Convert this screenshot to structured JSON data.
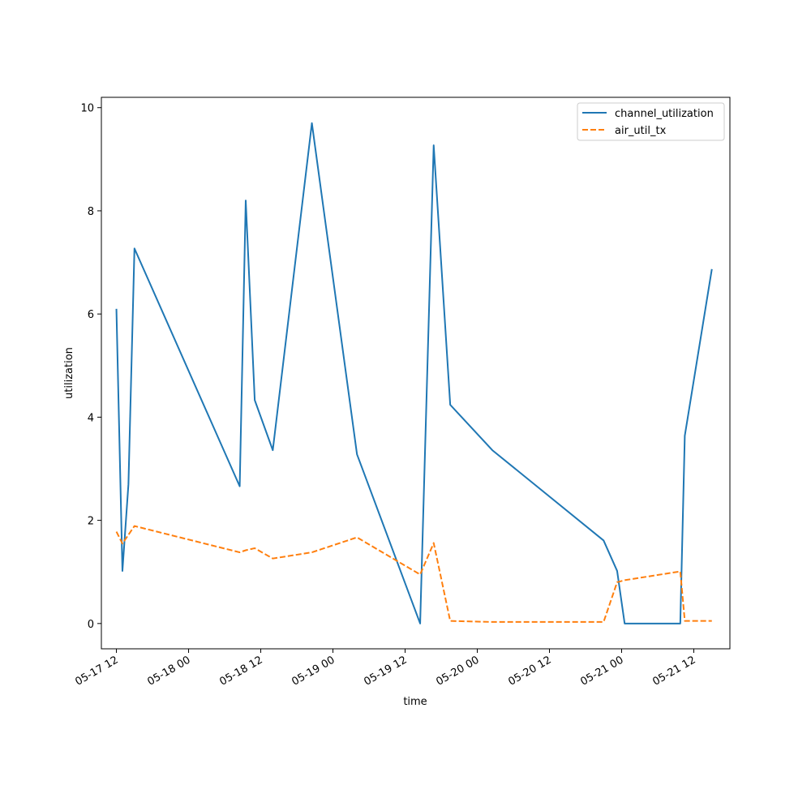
{
  "chart_data": {
    "type": "line",
    "title": "",
    "xlabel": "time",
    "ylabel": "utilization",
    "grid": false,
    "legend_position": "top-right",
    "x_ticks": [
      "05-17 12",
      "05-18 00",
      "05-18 12",
      "05-19 00",
      "05-19 12",
      "05-20 00",
      "05-20 12",
      "05-21 00",
      "05-21 12"
    ],
    "y_ticks": [
      "0",
      "2",
      "4",
      "6",
      "8",
      "10"
    ],
    "xlim": [
      "2024-05-17 09:30",
      "2024-05-21 18:00"
    ],
    "ylim": [
      -0.49,
      10.2
    ],
    "x": [
      "2024-05-17 12:00",
      "2024-05-17 13:00",
      "2024-05-17 14:00",
      "2024-05-17 15:00",
      "2024-05-18 08:30",
      "2024-05-18 09:30",
      "2024-05-18 11:00",
      "2024-05-18 14:00",
      "2024-05-18 20:30",
      "2024-05-19 04:00",
      "2024-05-19 14:30",
      "2024-05-19 16:45",
      "2024-05-19 19:30",
      "2024-05-20 02:30",
      "2024-05-20 21:00",
      "2024-05-20 23:15",
      "2024-05-21 00:30",
      "2024-05-21 09:45",
      "2024-05-21 10:30",
      "2024-05-21 15:00"
    ],
    "series": [
      {
        "name": "channel_utilization",
        "color": "#1f77b4",
        "style": "solid",
        "values": [
          6.1,
          1.02,
          2.7,
          7.27,
          2.66,
          8.2,
          4.33,
          3.36,
          9.7,
          3.28,
          0.0,
          9.27,
          4.24,
          3.36,
          1.61,
          1.02,
          0.0,
          0.0,
          3.64,
          6.87
        ]
      },
      {
        "name": "air_util_tx",
        "color": "#ff7f0e",
        "style": "dashed",
        "values": [
          1.78,
          1.55,
          1.72,
          1.89,
          1.38,
          1.42,
          1.46,
          1.26,
          1.38,
          1.67,
          0.95,
          1.56,
          0.05,
          0.03,
          0.03,
          0.8,
          0.84,
          1.01,
          0.05,
          0.05
        ]
      }
    ]
  }
}
